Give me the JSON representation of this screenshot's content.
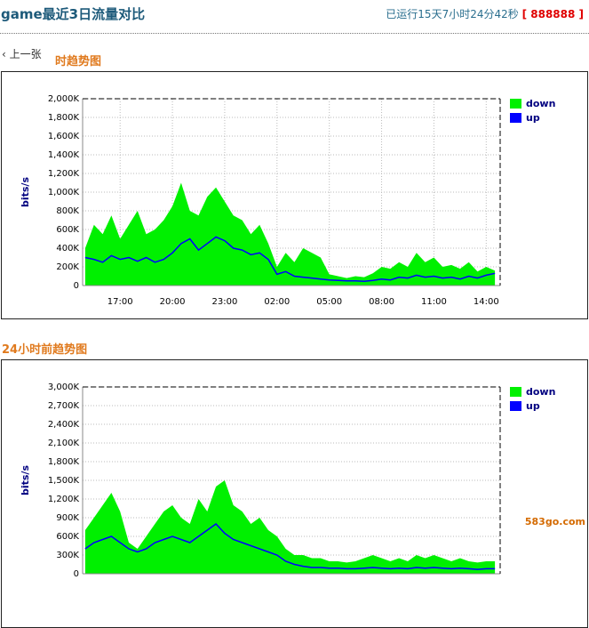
{
  "header": {
    "title": "game最近3日流量对比",
    "uptime": "已运行15天7小时24分42秒",
    "code": "[ 888888 ]"
  },
  "nav": {
    "prev": "上一张"
  },
  "watermark": "583go.com",
  "chart_data": [
    {
      "type": "area",
      "title": "时趋势图",
      "y_label": "bits/s",
      "grid": true,
      "x": [
        15,
        15.5,
        16,
        16.5,
        17,
        17.5,
        18,
        18.5,
        19,
        19.5,
        20,
        20.5,
        21,
        21.5,
        22,
        22.5,
        23,
        23.5,
        24,
        24.5,
        25,
        25.5,
        26,
        26.5,
        27,
        27.5,
        28,
        28.5,
        29,
        29.5,
        30,
        30.5,
        31,
        31.5,
        32,
        32.5,
        33,
        33.5,
        34,
        34.5,
        35,
        35.5,
        36,
        36.5,
        37,
        37.5,
        38,
        38.5
      ],
      "xlim": [
        14.85,
        38.8
      ],
      "xticks": [
        {
          "value": 17,
          "label": "17:00"
        },
        {
          "value": 20,
          "label": "20:00"
        },
        {
          "value": 23,
          "label": "23:00"
        },
        {
          "value": 26,
          "label": "02:00"
        },
        {
          "value": 29,
          "label": "05:00"
        },
        {
          "value": 32,
          "label": "08:00"
        },
        {
          "value": 35,
          "label": "11:00"
        },
        {
          "value": 38,
          "label": "14:00"
        }
      ],
      "ylim": [
        0,
        2000
      ],
      "yticks": [
        0,
        {
          "value": 200,
          "label": "200K"
        },
        {
          "value": 400,
          "label": "400K"
        },
        {
          "value": 600,
          "label": "600K"
        },
        {
          "value": 800,
          "label": "800K"
        },
        {
          "value": 1000,
          "label": "1,000K"
        },
        {
          "value": 1200,
          "label": "1,200K"
        },
        {
          "value": 1400,
          "label": "1,400K"
        },
        {
          "value": 1600,
          "label": "1,600K"
        },
        {
          "value": 1800,
          "label": "1,800K"
        },
        {
          "value": 2000,
          "label": "2,000K"
        }
      ],
      "series": [
        {
          "name": "down",
          "color": "#00f000",
          "kind": "area",
          "values": [
            400,
            650,
            550,
            750,
            500,
            650,
            800,
            550,
            600,
            700,
            850,
            1100,
            800,
            750,
            950,
            1050,
            900,
            750,
            700,
            550,
            650,
            450,
            200,
            350,
            250,
            400,
            350,
            300,
            120,
            100,
            80,
            100,
            90,
            130,
            200,
            180,
            250,
            200,
            350,
            250,
            300,
            200,
            220,
            180,
            250,
            150,
            200,
            160
          ]
        },
        {
          "name": "up",
          "color": "#0000ff",
          "kind": "line",
          "values": [
            300,
            280,
            250,
            320,
            280,
            300,
            260,
            300,
            250,
            280,
            350,
            450,
            500,
            380,
            450,
            520,
            480,
            400,
            380,
            330,
            350,
            280,
            120,
            150,
            100,
            90,
            80,
            70,
            60,
            55,
            50,
            50,
            45,
            55,
            70,
            60,
            90,
            80,
            110,
            90,
            100,
            80,
            90,
            70,
            100,
            80,
            110,
            130
          ]
        }
      ]
    },
    {
      "type": "area",
      "title": "24小时前趋势图",
      "y_label": "bits/s",
      "grid": true,
      "x": [
        15,
        15.5,
        16,
        16.5,
        17,
        17.5,
        18,
        18.5,
        19,
        19.5,
        20,
        20.5,
        21,
        21.5,
        22,
        22.5,
        23,
        23.5,
        24,
        24.5,
        25,
        25.5,
        26,
        26.5,
        27,
        27.5,
        28,
        28.5,
        29,
        29.5,
        30,
        30.5,
        31,
        31.5,
        32,
        32.5,
        33,
        33.5,
        34,
        34.5,
        35,
        35.5,
        36,
        36.5,
        37,
        37.5,
        38,
        38.5
      ],
      "xlim": [
        14.85,
        38.8
      ],
      "ylim": [
        0,
        3000
      ],
      "yticks": [
        0,
        {
          "value": 300,
          "label": "300K"
        },
        {
          "value": 600,
          "label": "600K"
        },
        {
          "value": 900,
          "label": "900K"
        },
        {
          "value": 1200,
          "label": "1,200K"
        },
        {
          "value": 1500,
          "label": "1,500K"
        },
        {
          "value": 1800,
          "label": "1,800K"
        },
        {
          "value": 2100,
          "label": "2,100K"
        },
        {
          "value": 2400,
          "label": "2,400K"
        },
        {
          "value": 2700,
          "label": "2,700K"
        },
        {
          "value": 3000,
          "label": "3,000K"
        }
      ],
      "series": [
        {
          "name": "down",
          "color": "#00f000",
          "kind": "area",
          "values": [
            700,
            900,
            1100,
            1300,
            1000,
            500,
            400,
            600,
            800,
            1000,
            1100,
            900,
            800,
            1200,
            1000,
            1400,
            1500,
            1100,
            1000,
            800,
            900,
            700,
            600,
            400,
            300,
            300,
            250,
            250,
            200,
            200,
            180,
            200,
            250,
            300,
            250,
            200,
            250,
            200,
            300,
            250,
            300,
            250,
            200,
            250,
            200,
            180,
            200,
            200
          ]
        },
        {
          "name": "up",
          "color": "#0000ff",
          "kind": "line",
          "values": [
            400,
            500,
            550,
            600,
            500,
            400,
            350,
            400,
            500,
            550,
            600,
            550,
            500,
            600,
            700,
            800,
            650,
            550,
            500,
            450,
            400,
            350,
            300,
            200,
            150,
            120,
            100,
            100,
            90,
            90,
            80,
            80,
            90,
            100,
            90,
            80,
            90,
            80,
            100,
            90,
            100,
            90,
            80,
            90,
            80,
            70,
            80,
            80
          ]
        }
      ]
    }
  ]
}
